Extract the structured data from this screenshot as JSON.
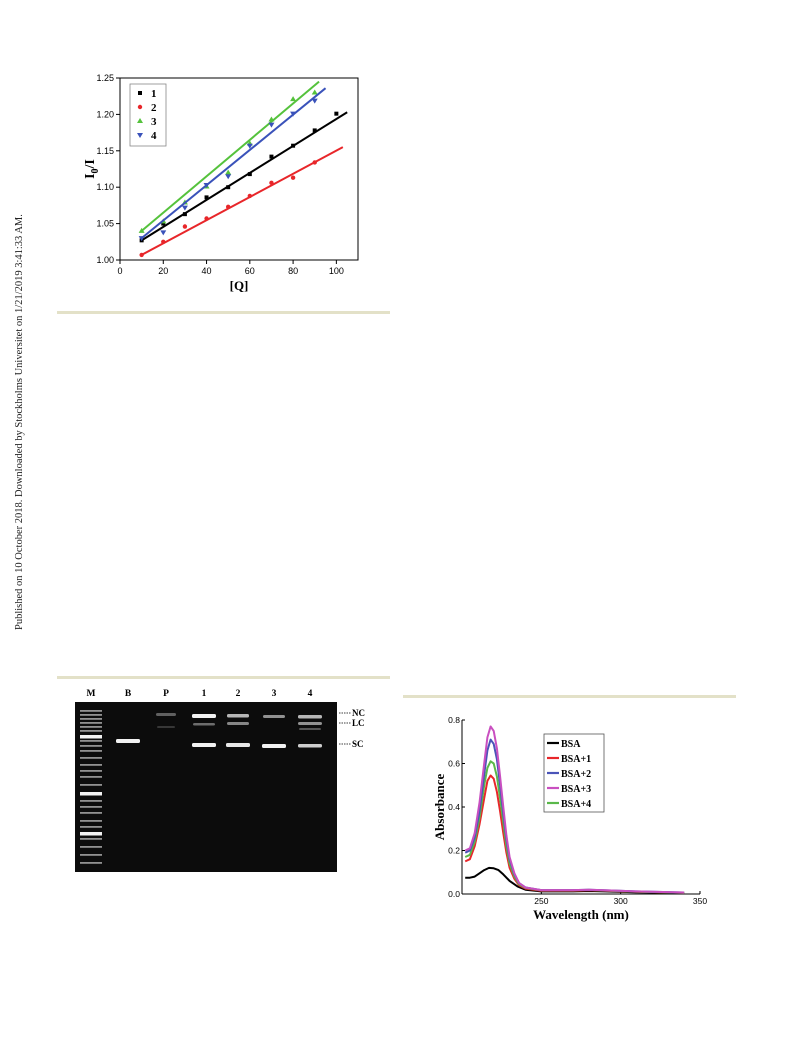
{
  "side_note": "Published on 10 October 2018. Downloaded by Stockholms Universitet on 1/21/2019 3:41:33 AM.",
  "colors": {
    "s1": "#000000",
    "s2": "#e8262a",
    "s3": "#55c23c",
    "s4": "#3a52ba",
    "bsa": "#000000",
    "bsa1": "#e8262a",
    "bsa2": "#4a54b8",
    "bsa3": "#c94fc0",
    "bsa4": "#5ab84a",
    "rule": "#e3e1c8"
  },
  "chart_data": [
    {
      "type": "scatter",
      "title": "",
      "xlabel": "[Q]",
      "ylabel": "I0/I",
      "ylabel_main": "I",
      "ylabel_sub": "0",
      "ylabel_tail": "/I",
      "xlim": [
        0,
        110
      ],
      "ylim": [
        1.0,
        1.25
      ],
      "xticks": [
        0,
        20,
        40,
        60,
        80,
        100
      ],
      "xtick_labels": [
        "0",
        "20",
        "40",
        "60",
        "80",
        "100"
      ],
      "yticks": [
        1.0,
        1.05,
        1.1,
        1.15,
        1.2,
        1.25
      ],
      "ytick_labels": [
        "1.00",
        "1.05",
        "1.10",
        "1.15",
        "1.20",
        "1.25"
      ],
      "legend": "top-left",
      "series": [
        {
          "name": "1",
          "marker": "square",
          "color_key": "s1",
          "x": [
            10,
            20,
            30,
            40,
            50,
            60,
            70,
            80,
            90,
            100
          ],
          "y": [
            1.027,
            1.05,
            1.063,
            1.086,
            1.1,
            1.118,
            1.142,
            1.157,
            1.178,
            1.201
          ],
          "fit": [
            [
              10,
              1.027
            ],
            [
              105,
              1.203
            ]
          ]
        },
        {
          "name": "2",
          "marker": "circle",
          "color_key": "s2",
          "x": [
            10,
            20,
            30,
            40,
            50,
            60,
            70,
            80,
            90
          ],
          "y": [
            1.007,
            1.025,
            1.046,
            1.057,
            1.073,
            1.088,
            1.106,
            1.113,
            1.134
          ],
          "fit": [
            [
              10,
              1.007
            ],
            [
              103,
              1.155
            ]
          ]
        },
        {
          "name": "3",
          "marker": "triangle-up",
          "color_key": "s3",
          "x": [
            10,
            20,
            30,
            40,
            50,
            60,
            70,
            80,
            90
          ],
          "y": [
            1.04,
            1.053,
            1.079,
            1.101,
            1.12,
            1.16,
            1.193,
            1.221,
            1.23
          ],
          "fit": [
            [
              10,
              1.04
            ],
            [
              92,
              1.245
            ]
          ]
        },
        {
          "name": "4",
          "marker": "triangle-down",
          "color_key": "s4",
          "x": [
            10,
            20,
            30,
            40,
            50,
            60,
            70,
            80,
            90
          ],
          "y": [
            1.03,
            1.038,
            1.072,
            1.103,
            1.115,
            1.157,
            1.186,
            1.201,
            1.219
          ],
          "fit": [
            [
              10,
              1.03
            ],
            [
              95,
              1.236
            ]
          ]
        }
      ]
    },
    {
      "type": "line",
      "title": "",
      "xlabel": "Wavelength (nm)",
      "ylabel": "Absorbance",
      "xlim": [
        200,
        350
      ],
      "ylim": [
        0.0,
        0.8
      ],
      "xticks": [
        250,
        300,
        350
      ],
      "xtick_labels": [
        "250",
        "300",
        "350"
      ],
      "yticks": [
        0.0,
        0.2,
        0.4,
        0.6,
        0.8
      ],
      "ytick_labels": [
        "0.0",
        "0.2",
        "0.4",
        "0.6",
        "0.8"
      ],
      "legend": "top-right",
      "series": [
        {
          "name": "BSA",
          "color_key": "bsa",
          "x": [
            202,
            205,
            208,
            211,
            214,
            217,
            220,
            223,
            226,
            230,
            235,
            240,
            250,
            270,
            280,
            290,
            310,
            340
          ],
          "y": [
            0.075,
            0.075,
            0.08,
            0.095,
            0.11,
            0.12,
            0.118,
            0.11,
            0.09,
            0.06,
            0.035,
            0.02,
            0.012,
            0.012,
            0.014,
            0.012,
            0.008,
            0.005
          ]
        },
        {
          "name": "BSA+1",
          "color_key": "bsa1",
          "x": [
            202,
            205,
            208,
            211,
            214,
            216,
            218,
            220,
            222,
            224,
            226,
            228,
            230,
            233,
            236,
            240,
            250,
            270,
            280,
            290,
            310,
            340
          ],
          "y": [
            0.15,
            0.16,
            0.22,
            0.32,
            0.44,
            0.52,
            0.545,
            0.53,
            0.47,
            0.38,
            0.28,
            0.19,
            0.12,
            0.07,
            0.04,
            0.025,
            0.015,
            0.015,
            0.018,
            0.015,
            0.01,
            0.006
          ]
        },
        {
          "name": "BSA+2",
          "color_key": "bsa2",
          "x": [
            202,
            205,
            208,
            211,
            214,
            216,
            218,
            220,
            222,
            224,
            226,
            228,
            230,
            233,
            236,
            240,
            250,
            270,
            280,
            290,
            310,
            340
          ],
          "y": [
            0.19,
            0.2,
            0.26,
            0.38,
            0.55,
            0.66,
            0.71,
            0.69,
            0.62,
            0.5,
            0.37,
            0.25,
            0.16,
            0.09,
            0.05,
            0.03,
            0.018,
            0.018,
            0.02,
            0.017,
            0.012,
            0.007
          ]
        },
        {
          "name": "BSA+3",
          "color_key": "bsa3",
          "x": [
            202,
            205,
            208,
            211,
            214,
            216,
            218,
            220,
            222,
            224,
            226,
            228,
            230,
            233,
            236,
            240,
            250,
            270,
            280,
            290,
            310,
            340
          ],
          "y": [
            0.2,
            0.21,
            0.28,
            0.42,
            0.6,
            0.72,
            0.77,
            0.75,
            0.67,
            0.54,
            0.4,
            0.27,
            0.17,
            0.095,
            0.05,
            0.03,
            0.018,
            0.018,
            0.02,
            0.017,
            0.012,
            0.007
          ]
        },
        {
          "name": "BSA+4",
          "color_key": "bsa4",
          "x": [
            202,
            205,
            208,
            211,
            214,
            216,
            218,
            220,
            222,
            224,
            226,
            228,
            230,
            233,
            236,
            240,
            250,
            270,
            280,
            290,
            310,
            340
          ],
          "y": [
            0.17,
            0.18,
            0.24,
            0.35,
            0.5,
            0.58,
            0.61,
            0.6,
            0.54,
            0.44,
            0.33,
            0.22,
            0.14,
            0.08,
            0.045,
            0.028,
            0.017,
            0.017,
            0.019,
            0.016,
            0.011,
            0.006
          ]
        }
      ]
    }
  ],
  "gel": {
    "lanes": [
      "M",
      "B",
      "P",
      "1",
      "2",
      "3",
      "4"
    ],
    "band_labels": [
      "NC",
      "LC",
      "SC"
    ]
  }
}
